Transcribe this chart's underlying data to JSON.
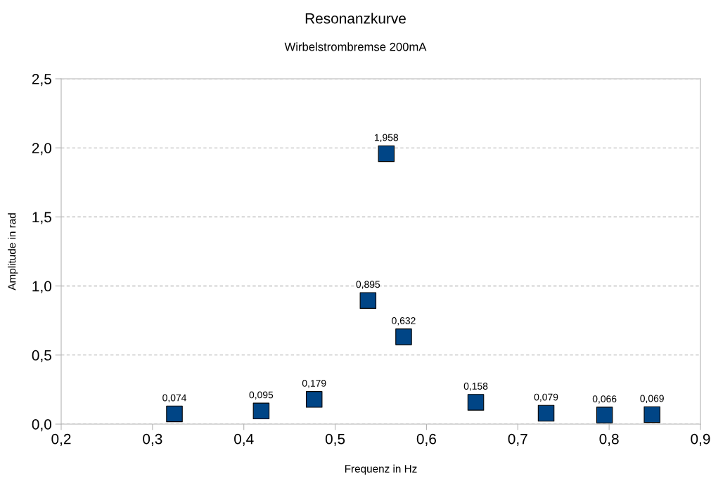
{
  "chart_data": {
    "type": "scatter",
    "title": "Resonanzkurve",
    "subtitle": "Wirbelstrombremse 200mA",
    "xlabel": "Frequenz in Hz",
    "ylabel": "Amplitude in rad",
    "x": [
      0.324,
      0.419,
      0.477,
      0.536,
      0.556,
      0.575,
      0.654,
      0.731,
      0.795,
      0.847
    ],
    "series": [
      {
        "color": "#004586",
        "values": [
          0.074,
          0.095,
          0.179,
          0.895,
          1.958,
          0.632,
          0.158,
          0.079,
          0.066,
          0.069
        ],
        "value_labels": [
          "0,074",
          "0,095",
          "0,179",
          "0,895",
          "1,958",
          "0,632",
          "0,158",
          "0,079",
          "0,066",
          "0,069"
        ]
      }
    ],
    "xlim": [
      0.2,
      0.9
    ],
    "xticks": [
      {
        "value": 0.2,
        "label": "0,2"
      },
      {
        "value": 0.3,
        "label": "0,3"
      },
      {
        "value": 0.4,
        "label": "0,4"
      },
      {
        "value": 0.5,
        "label": "0,5"
      },
      {
        "value": 0.6,
        "label": "0,6"
      },
      {
        "value": 0.7,
        "label": "0,7"
      },
      {
        "value": 0.8,
        "label": "0,8"
      },
      {
        "value": 0.9,
        "label": "0,9"
      }
    ],
    "ylim": [
      0,
      2.5
    ],
    "yticks": [
      {
        "value": 0,
        "label": "0,0"
      },
      {
        "value": 0.5,
        "label": "0,5"
      },
      {
        "value": 1,
        "label": "1,0"
      },
      {
        "value": 1.5,
        "label": "1,5"
      },
      {
        "value": 2,
        "label": "2,0"
      },
      {
        "value": 2.5,
        "label": "2,5"
      }
    ],
    "grid": "y",
    "marker": "square",
    "legend": false
  }
}
